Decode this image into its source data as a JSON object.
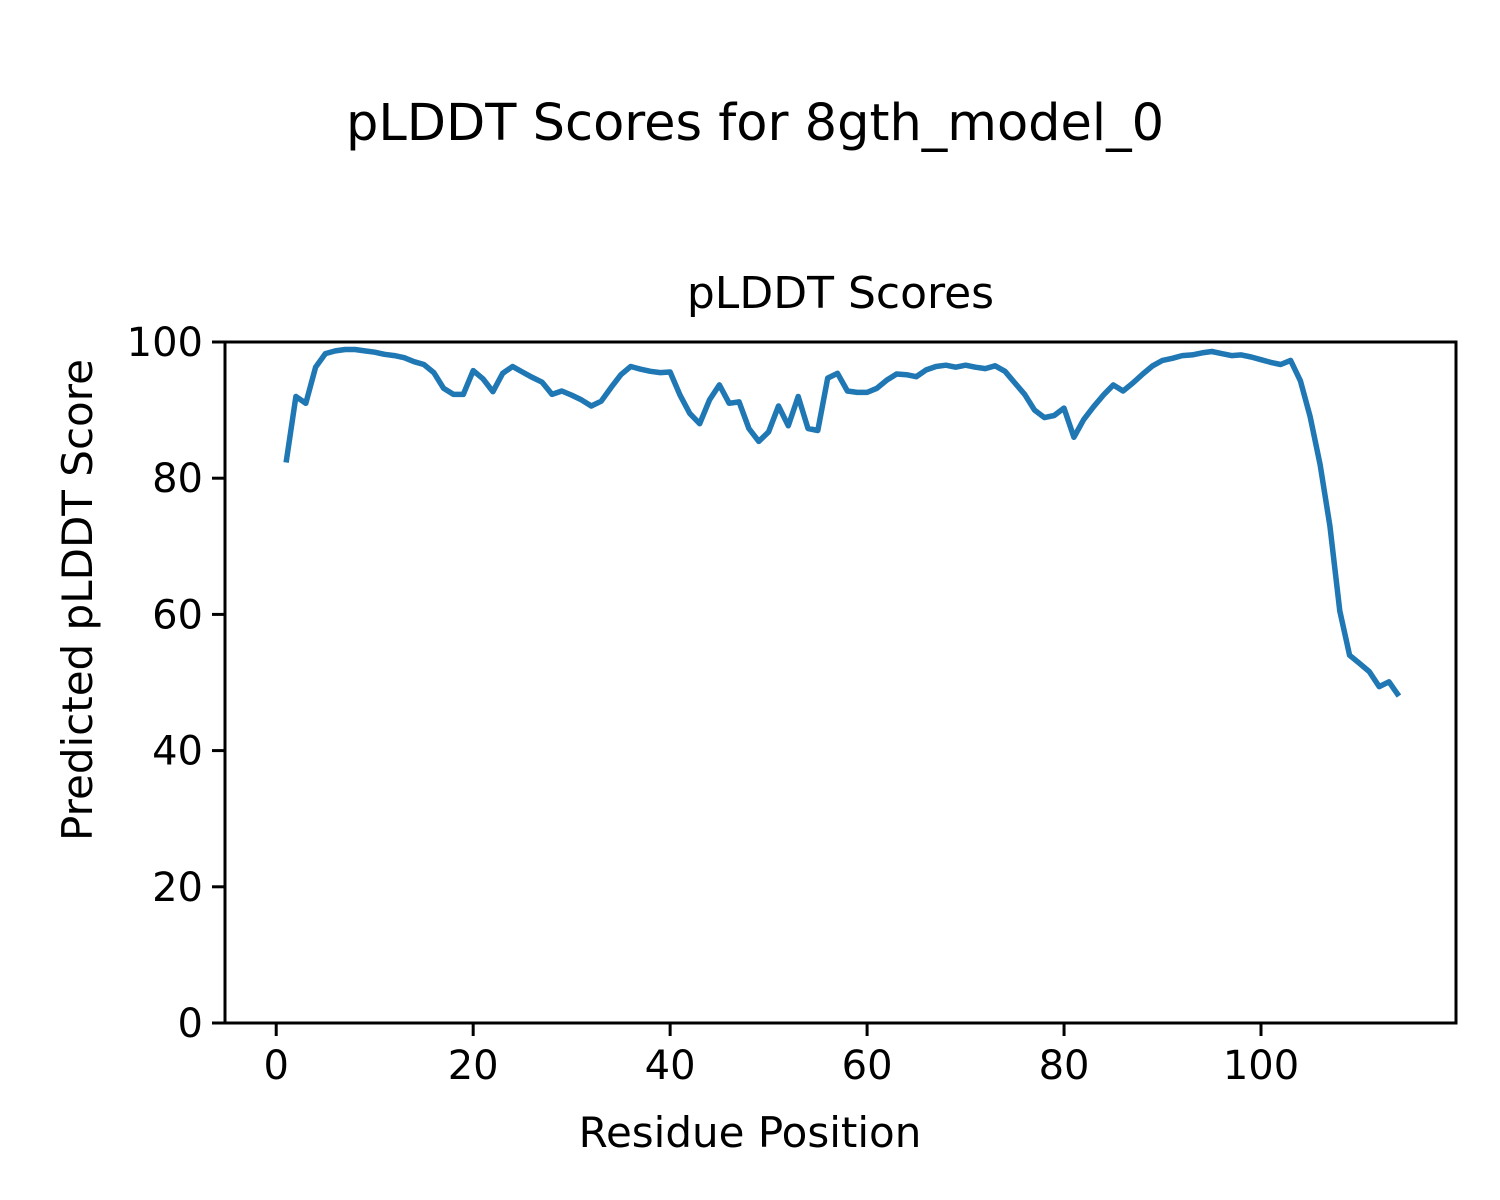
{
  "figure": {
    "suptitle": "pLDDT Scores for 8gth_model_0",
    "background": "#ffffff",
    "text_color": "#000000"
  },
  "chart_data": {
    "type": "line",
    "title": "pLDDT Scores",
    "xlabel": "Residue Position",
    "ylabel": "Predicted pLDDT Score",
    "line_color": "#1f77b4",
    "line_width": 5.5,
    "grid": false,
    "legend_position": "none",
    "xlim": [
      -5.2,
      119.8
    ],
    "ylim": [
      0,
      100
    ],
    "xticks": [
      0,
      20,
      40,
      60,
      80,
      100
    ],
    "yticks": [
      0,
      20,
      40,
      60,
      80,
      100
    ],
    "series": [
      {
        "name": "pLDDT",
        "x": [
          1,
          2,
          3,
          4,
          5,
          6,
          7,
          8,
          9,
          10,
          11,
          12,
          13,
          14,
          15,
          16,
          17,
          18,
          19,
          20,
          21,
          22,
          23,
          24,
          25,
          26,
          27,
          28,
          29,
          30,
          31,
          32,
          33,
          34,
          35,
          36,
          37,
          38,
          39,
          40,
          41,
          42,
          43,
          44,
          45,
          46,
          47,
          48,
          49,
          50,
          51,
          52,
          53,
          54,
          55,
          56,
          57,
          58,
          59,
          60,
          61,
          62,
          63,
          64,
          65,
          66,
          67,
          68,
          69,
          70,
          71,
          72,
          73,
          74,
          75,
          76,
          77,
          78,
          79,
          80,
          81,
          82,
          83,
          84,
          85,
          86,
          87,
          88,
          89,
          90,
          91,
          92,
          93,
          94,
          95,
          96,
          97,
          98,
          99,
          100,
          101,
          102,
          103,
          104,
          105,
          106,
          107,
          108,
          109,
          110,
          111,
          112,
          113,
          114
        ],
        "y": [
          82.3,
          92.0,
          91.0,
          96.3,
          98.3,
          98.7,
          98.9,
          98.9,
          98.7,
          98.5,
          98.2,
          98.0,
          97.7,
          97.1,
          96.7,
          95.5,
          93.2,
          92.3,
          92.3,
          95.8,
          94.6,
          92.7,
          95.4,
          96.4,
          95.6,
          94.8,
          94.1,
          92.3,
          92.8,
          92.2,
          91.5,
          90.6,
          91.3,
          93.3,
          95.2,
          96.4,
          96.0,
          95.7,
          95.5,
          95.6,
          92.2,
          89.5,
          88.0,
          91.5,
          93.7,
          91.0,
          91.2,
          87.3,
          85.4,
          86.8,
          90.6,
          87.7,
          92.0,
          87.3,
          87.0,
          94.7,
          95.4,
          92.8,
          92.6,
          92.6,
          93.2,
          94.4,
          95.3,
          95.2,
          94.9,
          95.9,
          96.4,
          96.6,
          96.3,
          96.6,
          96.3,
          96.1,
          96.5,
          95.7,
          94.0,
          92.3,
          90.0,
          88.9,
          89.2,
          90.3,
          86.0,
          88.6,
          90.5,
          92.2,
          93.7,
          92.8,
          94.0,
          95.3,
          96.5,
          97.3,
          97.6,
          98.0,
          98.1,
          98.4,
          98.6,
          98.3,
          98.0,
          98.1,
          97.8,
          97.4,
          97.0,
          96.7,
          97.3,
          94.3,
          89.0,
          82.0,
          73.0,
          60.5,
          54.0,
          52.8,
          51.6,
          49.4,
          50.1,
          48.0
        ]
      }
    ]
  }
}
